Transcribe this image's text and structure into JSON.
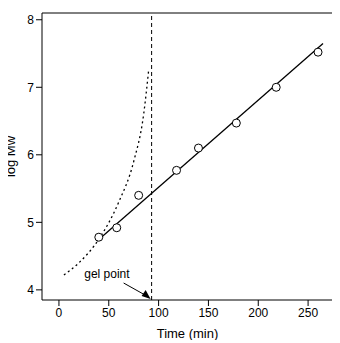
{
  "chart_data": {
    "type": "scatter",
    "x_label": "Time (min)",
    "y_label": "log M̄w",
    "xlim": [
      -17,
      275
    ],
    "ylim": [
      3.85,
      8.1
    ],
    "xticks": [
      0,
      50,
      100,
      150,
      200,
      250
    ],
    "yticks": [
      4,
      5,
      6,
      7,
      8
    ],
    "series": [
      {
        "type": "scatter",
        "marker": "open circle",
        "color": "#000000",
        "x": [
          40,
          58,
          80,
          118,
          140,
          178,
          218,
          260
        ],
        "values": [
          4.78,
          4.92,
          5.4,
          5.77,
          6.1,
          6.47,
          7.0,
          7.52
        ]
      },
      {
        "type": "line",
        "line_style": "solid",
        "color": "#000000",
        "x": [
          38,
          265
        ],
        "values": [
          4.72,
          7.65
        ]
      },
      {
        "type": "line",
        "line_style": "dotted",
        "color": "#000000",
        "x": [
          5,
          20,
          40,
          60,
          75,
          85,
          90
        ],
        "values": [
          4.22,
          4.4,
          4.75,
          5.3,
          5.9,
          6.6,
          7.25
        ]
      }
    ],
    "annotations": [
      {
        "text": "gel point",
        "x": 93
      }
    ]
  }
}
